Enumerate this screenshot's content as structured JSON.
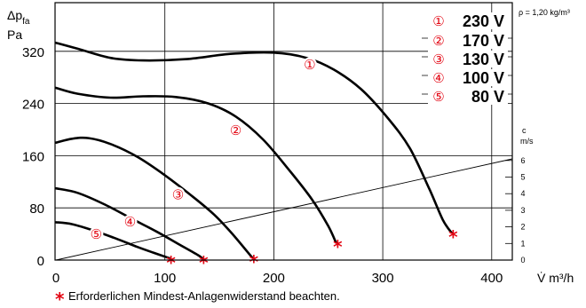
{
  "chart_data": {
    "type": "line",
    "title": "",
    "ylabel_main": "Δp",
    "ylabel_sub": "fa",
    "ylabel_unit": "Pa",
    "xlabel": "V̇  m³/h",
    "density_note": "ρ = 1,20 kg/m³",
    "c_axis_label": "c",
    "c_axis_unit": "m/s",
    "footnote_symbol": "*",
    "footnote": "Erforderlichen Mindest-Anlagenwiderstand beachten.",
    "xlim": [
      0,
      420
    ],
    "ylim": [
      0,
      360
    ],
    "x_ticks": [
      "0",
      "100",
      "200",
      "300",
      "400"
    ],
    "y_ticks": [
      "0",
      "80",
      "160",
      "240",
      "320"
    ],
    "c_ticks": [
      "0",
      "1",
      "2",
      "3",
      "4",
      "5",
      "6"
    ],
    "velocity_line": {
      "x": [
        0,
        420
      ],
      "y": [
        0,
        157
      ]
    },
    "series": [
      {
        "name": "230 V",
        "marker": "①",
        "label_at": [
          233,
          300
        ],
        "points": [
          [
            0,
            333
          ],
          [
            20,
            324
          ],
          [
            50,
            310
          ],
          [
            80,
            306
          ],
          [
            120,
            308
          ],
          [
            160,
            316
          ],
          [
            200,
            318
          ],
          [
            230,
            310
          ],
          [
            255,
            292
          ],
          [
            280,
            262
          ],
          [
            305,
            217
          ],
          [
            325,
            171
          ],
          [
            343,
            108
          ],
          [
            355,
            62
          ],
          [
            363,
            42
          ]
        ]
      },
      {
        "name": "170 V",
        "marker": "②",
        "label_at": [
          165,
          199
        ],
        "points": [
          [
            0,
            264
          ],
          [
            20,
            255
          ],
          [
            50,
            249
          ],
          [
            80,
            251
          ],
          [
            110,
            250
          ],
          [
            140,
            240
          ],
          [
            165,
            220
          ],
          [
            190,
            185
          ],
          [
            215,
            136
          ],
          [
            235,
            93
          ],
          [
            250,
            52
          ],
          [
            257,
            27
          ]
        ]
      },
      {
        "name": "130 V",
        "marker": "③",
        "label_at": [
          112,
          101
        ],
        "points": [
          [
            0,
            180
          ],
          [
            15,
            186
          ],
          [
            30,
            187
          ],
          [
            50,
            178
          ],
          [
            75,
            158
          ],
          [
            100,
            130
          ],
          [
            125,
            98
          ],
          [
            145,
            70
          ],
          [
            162,
            40
          ],
          [
            180,
            4
          ]
        ]
      },
      {
        "name": "100 V",
        "marker": "④",
        "label_at": [
          68,
          59
        ],
        "points": [
          [
            0,
            110
          ],
          [
            20,
            103
          ],
          [
            45,
            85
          ],
          [
            70,
            63
          ],
          [
            92,
            44
          ],
          [
            112,
            25
          ],
          [
            130,
            8
          ],
          [
            134,
            3
          ]
        ]
      },
      {
        "name": "80 V",
        "marker": "⑤",
        "label_at": [
          37,
          40
        ],
        "points": [
          [
            0,
            58
          ],
          [
            15,
            55
          ],
          [
            35,
            45
          ],
          [
            55,
            33
          ],
          [
            75,
            20
          ],
          [
            90,
            11
          ],
          [
            104,
            3
          ]
        ]
      }
    ]
  }
}
